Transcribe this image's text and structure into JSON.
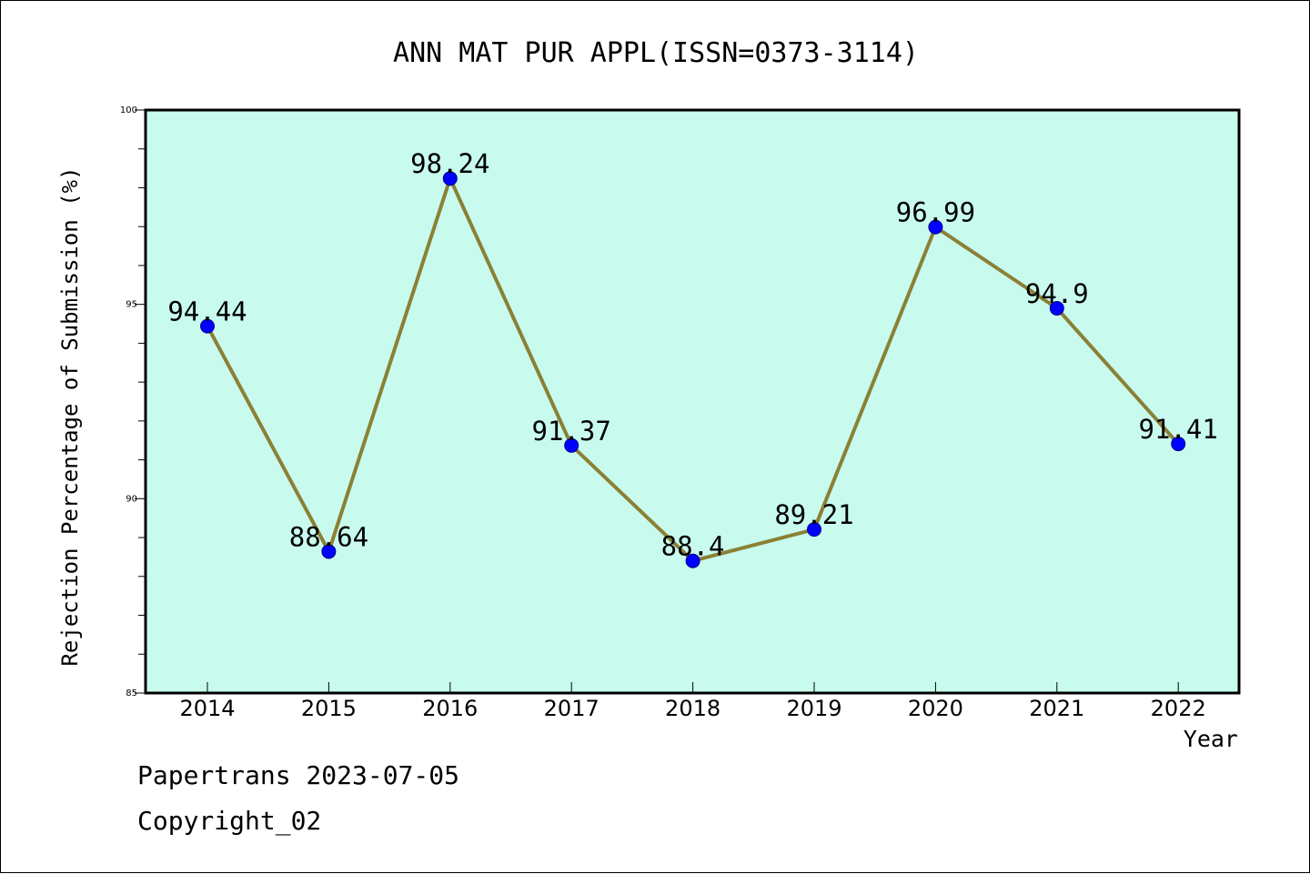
{
  "chart_data": {
    "type": "line",
    "title": "ANN MAT PUR APPL(ISSN=0373-3114)",
    "xlabel": "Year",
    "ylabel": "Rejection Percentage of Submission (%)",
    "categories": [
      "2014",
      "2015",
      "2016",
      "2017",
      "2018",
      "2019",
      "2020",
      "2021",
      "2022"
    ],
    "series": [
      {
        "values": [
          94.44,
          88.64,
          98.24,
          91.37,
          88.4,
          89.21,
          96.99,
          94.9,
          91.41
        ],
        "labels": [
          "94.44",
          "88.64",
          "98.24",
          "91.37",
          "88.4",
          "89.21",
          "96.99",
          "94.9",
          "91.41"
        ]
      }
    ],
    "ylim": [
      85,
      100
    ],
    "yticks": [
      "85",
      "90",
      "95",
      "100"
    ],
    "y_minor_step": 1,
    "grid": false,
    "colors": {
      "plot_background": "#c8fbee",
      "line": "#8b8035",
      "marker": "#0000ff"
    }
  },
  "footer": {
    "line1": "Papertrans 2023-07-05",
    "line2": "Copyright_02"
  }
}
